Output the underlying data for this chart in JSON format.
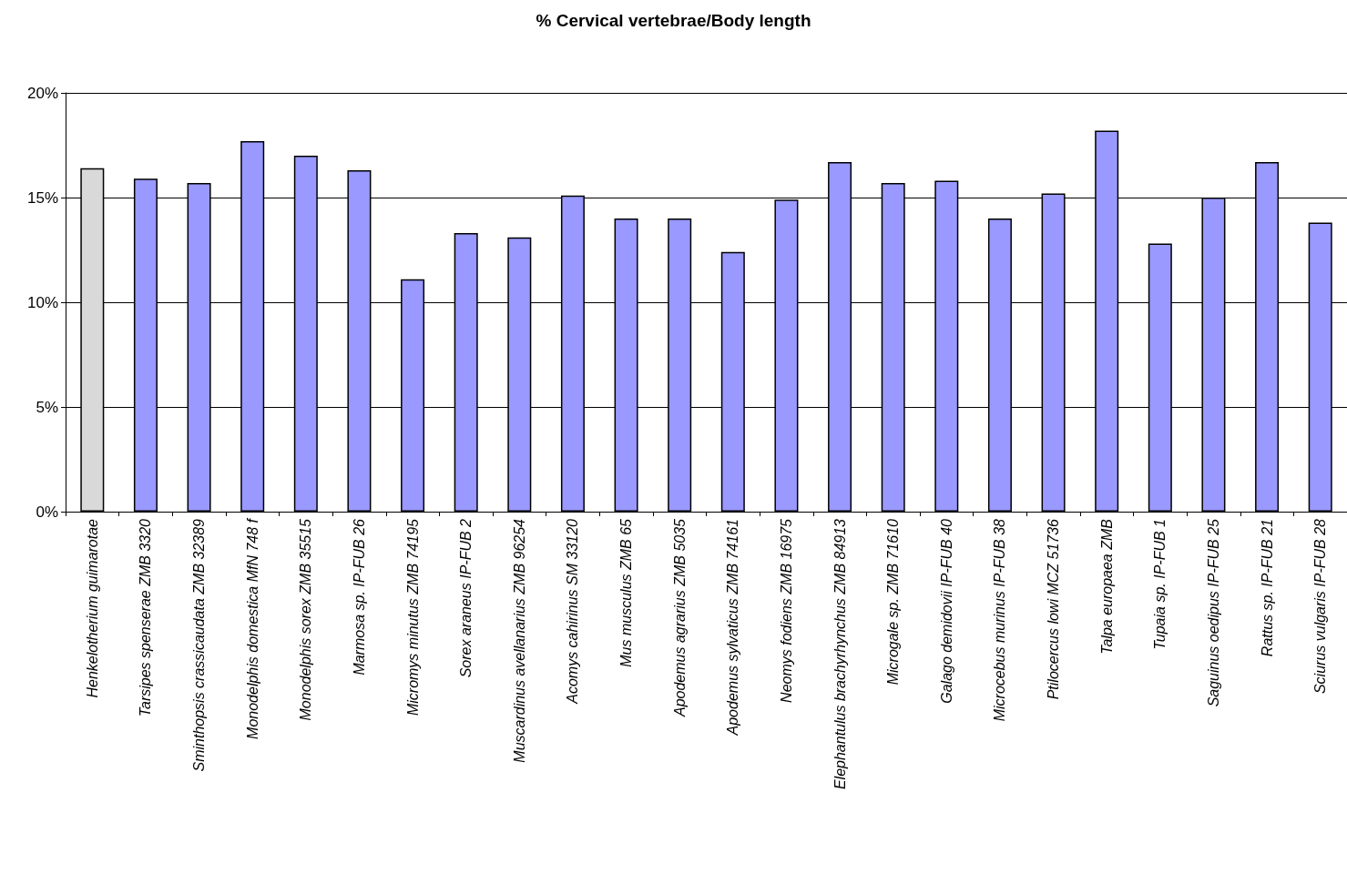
{
  "chart_data": {
    "type": "bar",
    "title": "% Cervical vertebrae/Body length",
    "categories": [
      "Henkelotherium guimarotae",
      "Tarsipes spenserae ZMB 3320",
      "Sminthopsis crassicaudata ZMB 32389",
      "Monodelphis domestica MfN 748 f",
      "Monodelphis sorex ZMB 35515",
      "Marmosa sp. IP-FUB 26",
      "Micromys minutus ZMB 74195",
      "Sorex araneus IP-FUB 2",
      "Muscardinus avellanarius ZMB 96254",
      "Acomys cahirinus SM 33120",
      "Mus musculus ZMB 65",
      "Apodemus agrarius ZMB 5035",
      "Apodemus sylvaticus ZMB 74161",
      "Neomys fodiens ZMB 16975",
      "Elephantulus brachyrhynchus ZMB 84913",
      "Microgale sp. ZMB 71610",
      "Galago demidovii IP-FUB 40",
      "Microcebus murinus IP-FUB 38",
      "Ptilocercus lowi MCZ 51736",
      "Talpa europaea ZMB",
      "Tupaia sp. IP-FUB 1",
      "Saguinus oedipus IP-FUB 25",
      "Rattus sp. IP-FUB 21",
      "Sciurus vulgaris IP-FUB 28"
    ],
    "values": [
      16.4,
      15.9,
      15.7,
      17.7,
      17.0,
      16.3,
      11.1,
      13.3,
      13.1,
      15.1,
      14.0,
      14.0,
      12.4,
      14.9,
      16.7,
      15.7,
      15.8,
      14.0,
      15.2,
      18.2,
      12.8,
      15.0,
      16.7,
      13.8
    ],
    "colors": [
      "#d9d9d9",
      "#9999ff",
      "#9999ff",
      "#9999ff",
      "#9999ff",
      "#9999ff",
      "#9999ff",
      "#9999ff",
      "#9999ff",
      "#9999ff",
      "#9999ff",
      "#9999ff",
      "#9999ff",
      "#9999ff",
      "#9999ff",
      "#9999ff",
      "#9999ff",
      "#9999ff",
      "#9999ff",
      "#9999ff",
      "#9999ff",
      "#9999ff",
      "#9999ff",
      "#9999ff"
    ],
    "ylim": [
      0,
      20
    ],
    "yticks": [
      {
        "value": 0,
        "label": "0%"
      },
      {
        "value": 5,
        "label": "5%"
      },
      {
        "value": 10,
        "label": "10%"
      },
      {
        "value": 15,
        "label": "15%"
      },
      {
        "value": 20,
        "label": "20%"
      }
    ],
    "grid": "y"
  }
}
